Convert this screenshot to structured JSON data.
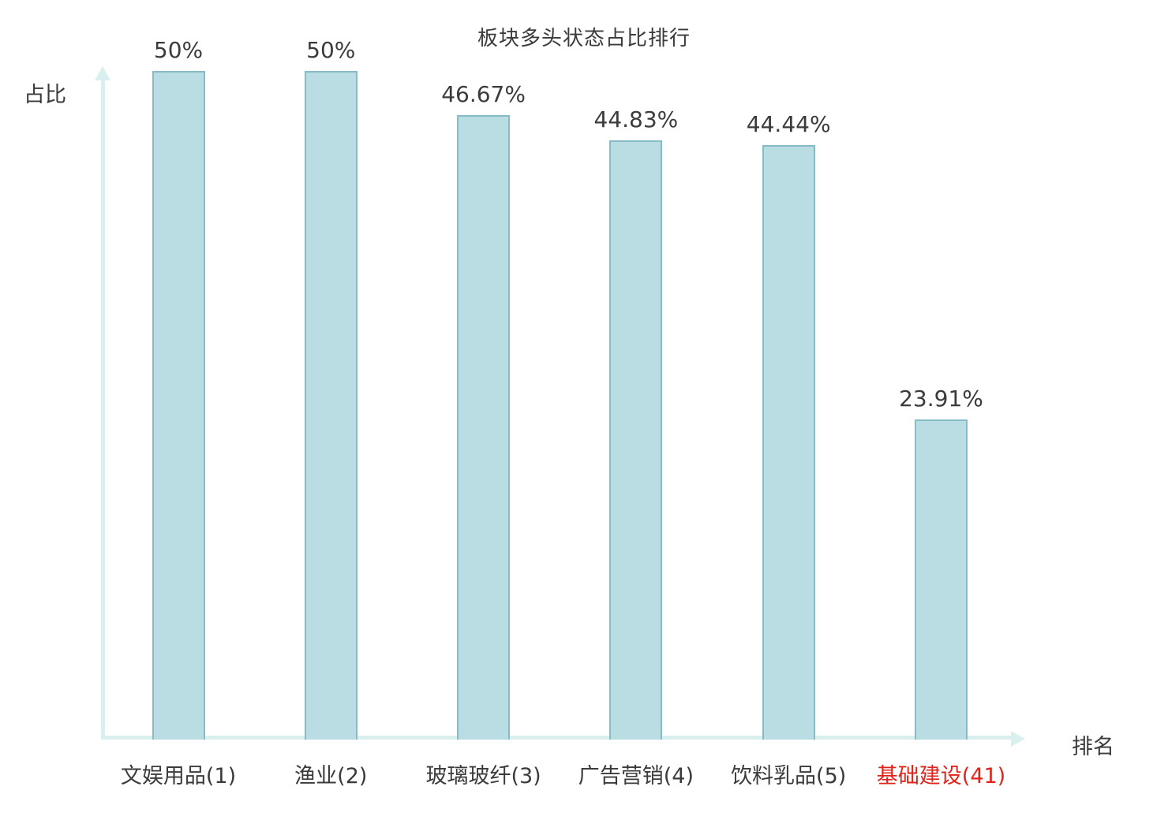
{
  "title": "板块多头状态占比排行",
  "axes": {
    "y_label": "占比",
    "x_label": "排名"
  },
  "colors": {
    "bar_fill": "#b9dde2",
    "bar_border": "#86bcc5",
    "axis": "#daf0ee",
    "text": "#3b3b3b",
    "highlight_text": "#e3231a"
  },
  "chart_data": {
    "type": "bar",
    "title": "板块多头状态占比排行",
    "xlabel": "排名",
    "ylabel": "占比",
    "categories": [
      "文娱用品(1)",
      "渔业(2)",
      "玻璃玻纤(3)",
      "广告营销(4)",
      "饮料乳品(5)",
      "基础建设(41)"
    ],
    "values": [
      50,
      50,
      46.67,
      44.83,
      44.44,
      23.91
    ],
    "value_labels": [
      "50%",
      "50%",
      "46.67%",
      "44.83%",
      "44.44%",
      "23.91%"
    ],
    "highlight_index": 5,
    "ylim": [
      0,
      50
    ],
    "grid": false,
    "legend": "none"
  }
}
